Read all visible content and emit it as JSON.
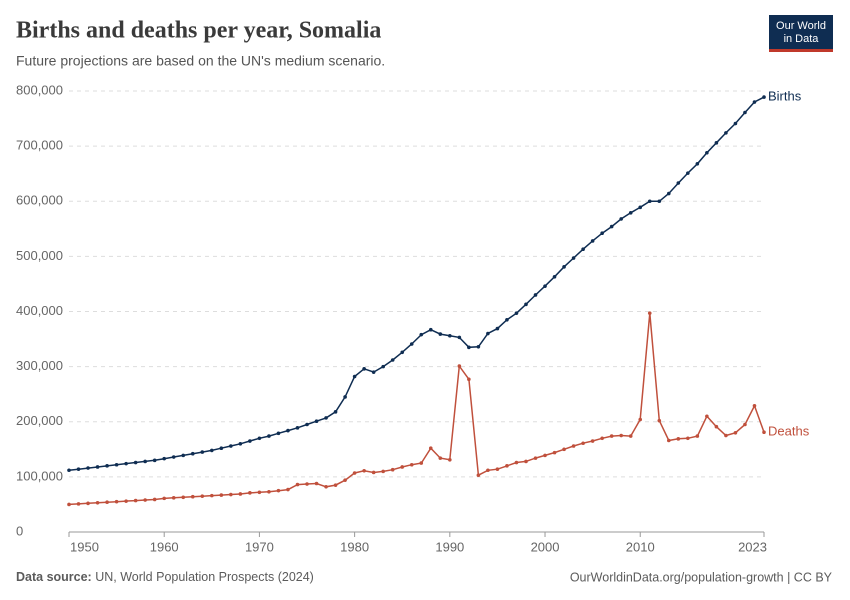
{
  "chart_data": {
    "type": "line",
    "title": "Births and deaths per year, Somalia",
    "subtitle": "Future projections are based on the UN's medium scenario.",
    "source_label": "Data source:",
    "source": "UN, World Population Prospects (2024)",
    "url": "OurWorldinData.org/population-growth | CC BY",
    "logo": [
      "Our World",
      "in Data"
    ],
    "x": [
      1950,
      1951,
      1952,
      1953,
      1954,
      1955,
      1956,
      1957,
      1958,
      1959,
      1960,
      1961,
      1962,
      1963,
      1964,
      1965,
      1966,
      1967,
      1968,
      1969,
      1970,
      1971,
      1972,
      1973,
      1974,
      1975,
      1976,
      1977,
      1978,
      1979,
      1980,
      1981,
      1982,
      1983,
      1984,
      1985,
      1986,
      1987,
      1988,
      1989,
      1990,
      1991,
      1992,
      1993,
      1994,
      1995,
      1996,
      1997,
      1998,
      1999,
      2000,
      2001,
      2002,
      2003,
      2004,
      2005,
      2006,
      2007,
      2008,
      2009,
      2010,
      2011,
      2012,
      2013,
      2014,
      2015,
      2016,
      2017,
      2018,
      2019,
      2020,
      2021,
      2022,
      2023
    ],
    "series": [
      {
        "name": "Births",
        "color": "#0f2d52",
        "values": [
          112000,
          114000,
          116000,
          118000,
          120000,
          122000,
          124000,
          126000,
          128000,
          130000,
          133000,
          136000,
          139000,
          142000,
          145000,
          148000,
          152000,
          156000,
          160000,
          165000,
          170000,
          174000,
          179000,
          184000,
          189000,
          195000,
          201000,
          207000,
          218000,
          245000,
          282000,
          296000,
          290000,
          300000,
          312000,
          326000,
          341000,
          358000,
          367000,
          359000,
          356000,
          353000,
          335000,
          336000,
          360000,
          369000,
          385000,
          397000,
          413000,
          430000,
          446000,
          463000,
          481000,
          497000,
          513000,
          528000,
          542000,
          554000,
          568000,
          579000,
          589000,
          600000,
          600000,
          614000,
          633000,
          651000,
          668000,
          688000,
          706000,
          724000,
          741000,
          761000,
          780000,
          789000
        ]
      },
      {
        "name": "Deaths",
        "color": "#c0503c",
        "values": [
          50000,
          51000,
          52000,
          53000,
          54000,
          55000,
          56000,
          57000,
          58000,
          59000,
          61000,
          62000,
          63000,
          64000,
          65000,
          66000,
          67000,
          68000,
          69000,
          71000,
          72000,
          73000,
          75000,
          77000,
          86000,
          87000,
          88000,
          82000,
          85000,
          94000,
          107000,
          111000,
          108000,
          110000,
          113000,
          118000,
          122000,
          125000,
          152000,
          134000,
          131000,
          301000,
          277000,
          103000,
          112000,
          114000,
          120000,
          126000,
          128000,
          134000,
          139000,
          144000,
          150000,
          156000,
          161000,
          165000,
          170000,
          174000,
          175000,
          174000,
          204000,
          397000,
          202000,
          166000,
          169000,
          170000,
          174000,
          210000,
          191000,
          175000,
          180000,
          195000,
          229000,
          181000
        ]
      }
    ],
    "xlim": [
      1950,
      2023
    ],
    "xticks": [
      1950,
      1960,
      1970,
      1980,
      1990,
      2000,
      2010,
      2023
    ],
    "ylim": [
      0,
      800000
    ],
    "yticks": [
      0,
      {
        "value": 100000,
        "label": "100,000"
      },
      {
        "value": 200000,
        "label": "200,000"
      },
      {
        "value": 300000,
        "label": "300,000"
      },
      {
        "value": 400000,
        "label": "400,000"
      },
      {
        "value": 500000,
        "label": "500,000"
      },
      {
        "value": 600000,
        "label": "600,000"
      },
      {
        "value": 700000,
        "label": "700,000"
      },
      {
        "value": 800000,
        "label": "800,000"
      }
    ],
    "grid": true
  }
}
